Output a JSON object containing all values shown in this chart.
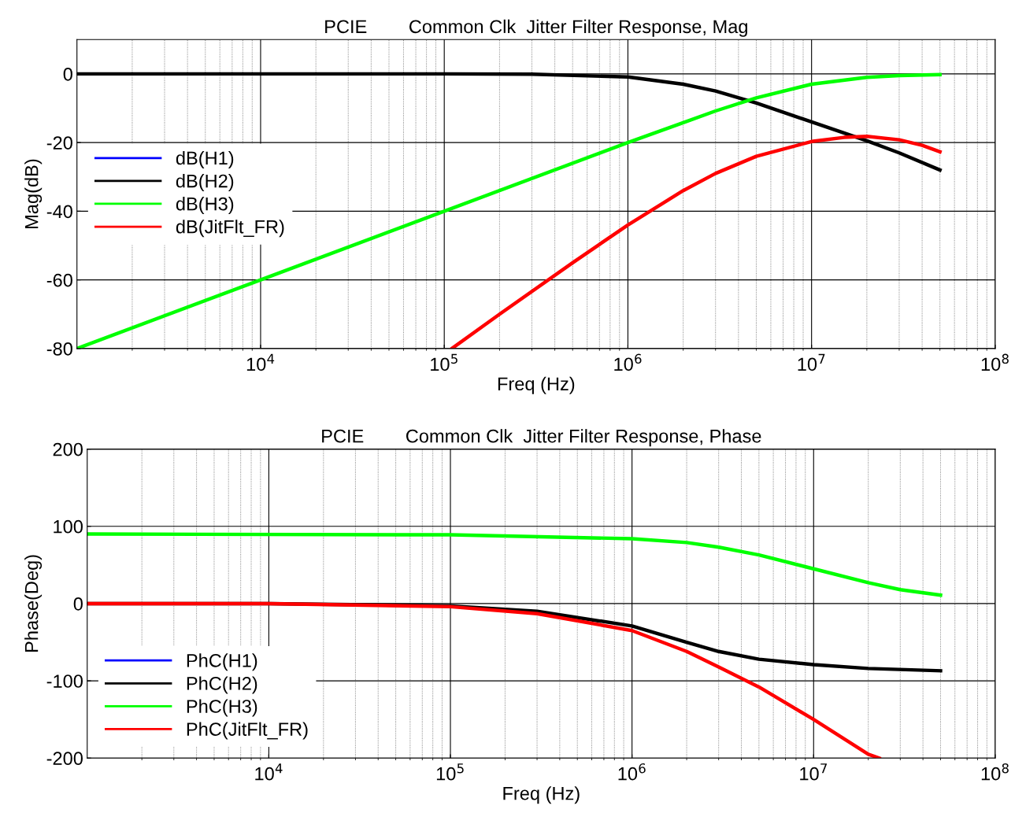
{
  "chart_data": [
    {
      "type": "line",
      "title": "PCIE        Common Clk  Jitter Filter Response, Mag",
      "xlabel": "Freq (Hz)",
      "ylabel": "Mag(dB)",
      "log": "x",
      "grid": true,
      "legend": "center left",
      "xlim": [
        1000,
        100000000
      ],
      "xticks": [
        {
          "value": 10000,
          "label": "10$^{4}$"
        },
        {
          "value": 100000,
          "label": "10$^{5}$"
        },
        {
          "value": 1000000,
          "label": "10$^{6}$"
        },
        {
          "value": 10000000,
          "label": "10$^{7}$"
        },
        {
          "value": 100000000,
          "label": "10$^{8}$"
        }
      ],
      "ylim": [
        -80,
        10
      ],
      "yticks": [
        -80,
        -60,
        -40,
        -20,
        0
      ],
      "series": [
        {
          "name": "dB(H1)",
          "color": "#0000ff"
        },
        {
          "name": "dB(H2)",
          "color": "#000000",
          "x": [
            1000,
            100000,
            300000,
            1000000,
            2000000,
            3000000,
            5000000,
            10000000,
            20000000,
            30000000,
            50000000
          ],
          "values": [
            0,
            0,
            -0.1,
            -0.9,
            -3,
            -5,
            -8.5,
            -14,
            -19.5,
            -23,
            -28
          ]
        },
        {
          "name": "dB(H3)",
          "color": "#00ff00",
          "x": [
            1000,
            10000,
            100000,
            1000000,
            2000000,
            3000000,
            5000000,
            10000000,
            20000000,
            30000000,
            50000000
          ],
          "values": [
            -80,
            -60,
            -40,
            -20,
            -14.2,
            -10.8,
            -7,
            -3,
            -1,
            -0.5,
            -0.2
          ]
        },
        {
          "name": "dB(JitFlt_FR)",
          "color": "#ff0000",
          "x": [
            110000,
            200000,
            500000,
            1000000,
            2000000,
            3000000,
            5000000,
            10000000,
            15000000,
            20000000,
            30000000,
            40000000,
            50000000
          ],
          "values": [
            -80,
            -70,
            -55,
            -44,
            -34,
            -29,
            -24,
            -19.7,
            -18.5,
            -18.2,
            -19.2,
            -20.8,
            -22.7
          ]
        }
      ]
    },
    {
      "type": "line",
      "title": "PCIE        Common Clk  Jitter Filter Response, Phase",
      "xlabel": "Freq (Hz)",
      "ylabel": "Phase(Deg)",
      "log": "x",
      "grid": true,
      "legend": "lower left",
      "xlim": [
        1000,
        100000000
      ],
      "xticks": [
        {
          "value": 10000,
          "label": "10$^{4}$"
        },
        {
          "value": 100000,
          "label": "10$^{5}$"
        },
        {
          "value": 1000000,
          "label": "10$^{6}$"
        },
        {
          "value": 10000000,
          "label": "10$^{7}$"
        },
        {
          "value": 100000000,
          "label": "10$^{8}$"
        }
      ],
      "ylim": [
        -200,
        200
      ],
      "yticks": [
        -200,
        -100,
        0,
        100,
        200
      ],
      "series": [
        {
          "name": "PhC(H1)",
          "color": "#0000ff"
        },
        {
          "name": "PhC(H2)",
          "color": "#000000",
          "x": [
            1000,
            10000,
            100000,
            300000,
            1000000,
            2000000,
            3000000,
            5000000,
            10000000,
            20000000,
            50000000
          ],
          "values": [
            0,
            0,
            -3,
            -10,
            -29,
            -50,
            -62,
            -72,
            -79,
            -84,
            -87
          ]
        },
        {
          "name": "PhC(H3)",
          "color": "#00ff00",
          "x": [
            1000,
            100000,
            1000000,
            2000000,
            3000000,
            5000000,
            10000000,
            20000000,
            30000000,
            50000000
          ],
          "values": [
            90,
            89,
            84,
            79,
            73,
            63,
            45,
            27,
            18,
            11
          ]
        },
        {
          "name": "PhC(JitFlt_FR)",
          "color": "#ff0000",
          "x": [
            1000,
            10000,
            100000,
            300000,
            1000000,
            2000000,
            3000000,
            5000000,
            10000000,
            20000000,
            23000000
          ],
          "values": [
            0,
            0,
            -4,
            -13,
            -35,
            -62,
            -82,
            -108,
            -150,
            -195,
            -200
          ]
        }
      ]
    }
  ]
}
